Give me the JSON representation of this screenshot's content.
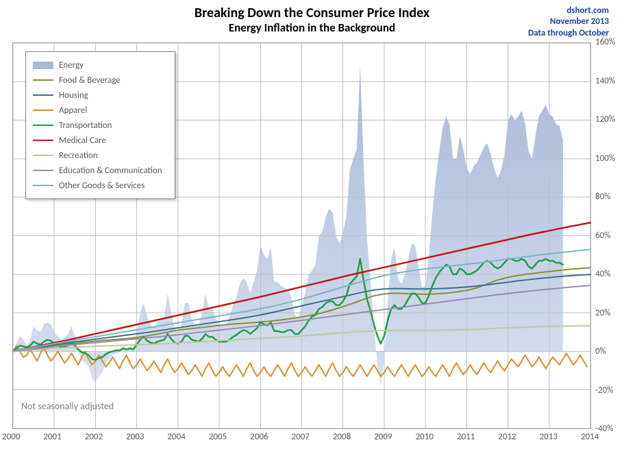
{
  "title": "Breaking Down the Consumer Price Index",
  "subtitle": "Energy Inflation in the Background",
  "attribution": {
    "site": "dshort.com",
    "date": "November 2013",
    "range": "Data through October"
  },
  "footnote": "Not seasonally adjusted",
  "chart": {
    "type": "line-with-area-background",
    "xlim": [
      2000,
      2014
    ],
    "ylim": [
      -40,
      160
    ],
    "x_tick_step": 1,
    "y_tick_step": 20,
    "y_tick_suffix": "%",
    "background_color": "#ffffff",
    "grid_color": "#bfbfbf",
    "axis_label_color": "#595959",
    "axis_fontsize": 13,
    "title_fontsize": 20,
    "subtitle_fontsize": 17,
    "attribution_color": "#1f3f9b",
    "area_series": {
      "name": "Energy",
      "fill_top": "#aab9d9",
      "fill_bottom": "#d7e0ef",
      "stroke": "none",
      "x_step": 0.0833333,
      "y": [
        0,
        4,
        8,
        6,
        3,
        6,
        13,
        11,
        10,
        14,
        15,
        14,
        10,
        8,
        6,
        7,
        9,
        13,
        8,
        0,
        -5,
        -6,
        -8,
        -14,
        -16,
        -13,
        -11,
        -6,
        -4,
        -2,
        -1,
        -1,
        3,
        1,
        3,
        1,
        10,
        20,
        25,
        18,
        14,
        12,
        15,
        16,
        18,
        30,
        20,
        12,
        10,
        14,
        25,
        25,
        16,
        14,
        13,
        20,
        30,
        22,
        22,
        17,
        14,
        14,
        14,
        18,
        24,
        28,
        35,
        38,
        36,
        30,
        36,
        42,
        55,
        50,
        48,
        54,
        36,
        36,
        34,
        33,
        32,
        28,
        19,
        17,
        24,
        30,
        40,
        42,
        45,
        60,
        62,
        70,
        74,
        72,
        60,
        56,
        62,
        70,
        94,
        100,
        105,
        148,
        98,
        58,
        37,
        14,
        -7,
        -18,
        -4,
        26,
        48,
        54,
        38,
        35,
        40,
        48,
        56,
        55,
        44,
        33,
        34,
        50,
        72,
        90,
        104,
        116,
        122,
        118,
        100,
        100,
        112,
        105,
        95,
        92,
        96,
        98,
        102,
        106,
        108,
        102,
        95,
        90,
        94,
        102,
        120,
        123,
        120,
        122,
        125,
        118,
        104,
        100,
        112,
        122,
        125,
        128,
        123,
        122,
        118,
        117,
        110
      ]
    },
    "line_series": [
      {
        "name": "Food & Beverage",
        "color": "#8a8f2e",
        "width": 2,
        "x_step": 0.25,
        "y": [
          0,
          0.8,
          1.5,
          2.2,
          2.9,
          3.6,
          4.2,
          4.8,
          5.3,
          5.8,
          6.2,
          6.6,
          7.2,
          8.0,
          9.0,
          10.0,
          11.0,
          11.6,
          12.2,
          12.8,
          13.4,
          14.0,
          14.4,
          14.8,
          15.2,
          15.7,
          16.3,
          17.0,
          17.8,
          18.8,
          20.0,
          21.5,
          23.2,
          25.0,
          27.0,
          28.8,
          29.8,
          30.2,
          30.0,
          29.7,
          29.6,
          29.8,
          30.2,
          30.8,
          31.6,
          33.0,
          35.0,
          37.0,
          38.4,
          39.4,
          40.2,
          40.8,
          41.4,
          42.0,
          42.6,
          43.0,
          43.4
        ]
      },
      {
        "name": "Housing",
        "color": "#3b6f8f",
        "width": 2,
        "x_step": 0.25,
        "y": [
          0,
          0.9,
          1.8,
          2.6,
          3.4,
          4.2,
          4.9,
          5.6,
          6.3,
          7.0,
          7.7,
          8.4,
          9.1,
          9.8,
          10.6,
          11.4,
          12.2,
          13.0,
          13.8,
          14.6,
          15.4,
          16.2,
          17.0,
          17.9,
          18.9,
          20.0,
          21.2,
          22.4,
          23.6,
          24.8,
          26.0,
          27.2,
          28.4,
          29.6,
          30.8,
          31.8,
          32.4,
          32.6,
          32.5,
          32.4,
          32.4,
          32.5,
          32.7,
          33.0,
          33.4,
          33.9,
          34.5,
          35.2,
          35.9,
          36.6,
          37.2,
          37.8,
          38.3,
          38.8,
          39.2,
          39.6,
          39.9
        ]
      },
      {
        "name": "Apparel",
        "color": "#e08b28",
        "width": 2,
        "x_step": 0.0833333,
        "y": [
          0,
          3,
          0,
          -3,
          -2,
          1,
          -2,
          -5,
          -1,
          2,
          -2,
          -5,
          -3,
          0,
          -3,
          -6,
          -4,
          -1,
          -4,
          -7,
          -3,
          0,
          -4,
          -7,
          -5,
          -2,
          -5,
          -8,
          -6,
          -3,
          -6,
          -9,
          -5,
          -2,
          -6,
          -9,
          -7,
          -4,
          -7,
          -10,
          -8,
          -5,
          -8,
          -11,
          -7,
          -4,
          -8,
          -11,
          -9,
          -6,
          -9,
          -12,
          -10,
          -7,
          -10,
          -13,
          -9,
          -6,
          -10,
          -13,
          -11,
          -8,
          -11,
          -13,
          -10,
          -7,
          -10,
          -13,
          -9,
          -6,
          -10,
          -13,
          -11,
          -8,
          -11,
          -13,
          -10,
          -7,
          -10,
          -13,
          -9,
          -6,
          -10,
          -13,
          -11,
          -8,
          -11,
          -13,
          -10,
          -7,
          -10,
          -13,
          -9,
          -6,
          -10,
          -13,
          -11,
          -8,
          -11,
          -13,
          -10,
          -7,
          -10,
          -13,
          -10,
          -7,
          -10,
          -13,
          -11,
          -8,
          -11,
          -13,
          -10,
          -7,
          -10,
          -13,
          -10,
          -7,
          -10,
          -13,
          -11,
          -8,
          -11,
          -13,
          -10,
          -7,
          -10,
          -13,
          -9,
          -6,
          -9,
          -12,
          -10,
          -7,
          -10,
          -12,
          -9,
          -6,
          -9,
          -11,
          -8,
          -5,
          -8,
          -10,
          -7,
          -4,
          -6,
          -8,
          -5,
          -2,
          -5,
          -8,
          -6,
          -3,
          -6,
          -9,
          -6,
          -3,
          -5,
          -7,
          -4,
          -1,
          -4,
          -7,
          -5,
          -2,
          -5,
          -8
        ]
      },
      {
        "name": "Transportation",
        "color": "#1fa043",
        "width": 2.5,
        "x_step": 0.0833333,
        "y": [
          0,
          1.5,
          3,
          2.5,
          2,
          3,
          5,
          4,
          3.5,
          5,
          6,
          5.5,
          4,
          3,
          2,
          2.5,
          3,
          4.5,
          3,
          1,
          -0.5,
          -1,
          -2,
          -4,
          -4.5,
          -3.5,
          -3,
          -1.5,
          -0.5,
          0,
          0.5,
          0.5,
          1.5,
          1,
          1.5,
          1,
          3.5,
          6,
          7.5,
          5.5,
          4.5,
          4,
          5,
          5.5,
          6,
          9,
          6.5,
          4.5,
          4,
          5,
          8,
          8,
          6,
          5.5,
          5,
          6.5,
          9,
          7.5,
          7.5,
          6,
          5,
          5,
          5,
          6,
          7.5,
          8.5,
          10,
          11,
          10.5,
          9,
          10.5,
          12,
          15,
          14,
          13.5,
          15,
          10.5,
          10.5,
          10,
          10,
          11,
          11,
          9,
          9,
          11,
          13,
          16,
          18,
          19,
          22,
          23,
          25,
          26,
          26,
          24,
          24,
          26,
          29,
          35,
          37,
          39,
          48,
          37,
          27,
          21,
          14,
          8,
          4,
          8,
          16,
          22,
          24,
          22,
          22,
          24,
          27,
          30,
          30,
          28,
          25,
          25,
          29,
          34,
          38,
          41,
          43,
          45,
          44,
          40,
          40,
          43,
          42,
          40,
          40,
          41,
          42,
          44,
          46,
          47,
          46,
          44,
          43,
          44,
          46,
          48,
          48,
          47,
          47,
          48,
          47,
          44,
          43,
          45,
          47,
          47,
          48,
          47,
          47,
          46,
          46,
          45
        ]
      },
      {
        "name": "Medical Care",
        "color": "#c11818",
        "width": 2.5,
        "x_step": 0.25,
        "y": [
          0,
          1.1,
          2.2,
          3.3,
          4.4,
          5.5,
          6.7,
          7.9,
          9.1,
          10.3,
          11.5,
          12.7,
          13.9,
          15.1,
          16.3,
          17.5,
          18.7,
          19.9,
          21.1,
          22.3,
          23.5,
          24.7,
          25.9,
          27.1,
          28.3,
          29.6,
          30.9,
          32.2,
          33.5,
          34.8,
          36.1,
          37.4,
          38.7,
          40.0,
          41.2,
          42.4,
          43.6,
          44.8,
          46.0,
          47.2,
          48.4,
          49.6,
          50.8,
          52.0,
          53.2,
          54.4,
          55.6,
          56.8,
          58.0,
          59.2,
          60.4,
          61.5,
          62.6,
          63.7,
          64.8,
          65.8,
          66.8
        ]
      },
      {
        "name": "Recreation",
        "color": "#c2c99a",
        "width": 2,
        "x_step": 0.25,
        "y": [
          0,
          0.4,
          0.8,
          1.2,
          1.5,
          1.8,
          2.1,
          2.4,
          2.6,
          2.8,
          3.0,
          3.2,
          3.4,
          3.6,
          3.8,
          4.0,
          4.3,
          4.6,
          4.9,
          5.2,
          5.5,
          5.8,
          6.1,
          6.4,
          6.7,
          7.0,
          7.3,
          7.6,
          8.0,
          8.4,
          8.8,
          9.2,
          9.6,
          10.0,
          10.3,
          10.6,
          10.8,
          10.9,
          10.9,
          10.9,
          10.9,
          10.9,
          11.0,
          11.1,
          11.2,
          11.4,
          11.7,
          12.0,
          12.2,
          12.4,
          12.6,
          12.8,
          12.9,
          13.0,
          13.1,
          13.2,
          13.2
        ]
      },
      {
        "name": "Education & Communication",
        "color": "#9a8bb0",
        "width": 2,
        "x_step": 0.25,
        "y": [
          0,
          0.6,
          1.2,
          1.8,
          2.4,
          3.0,
          3.5,
          4.0,
          4.5,
          5.0,
          5.5,
          6.0,
          6.5,
          7.0,
          7.5,
          8.0,
          8.6,
          9.2,
          9.8,
          10.4,
          11.0,
          11.6,
          12.2,
          12.8,
          13.4,
          14.0,
          14.7,
          15.4,
          16.1,
          16.8,
          17.5,
          18.2,
          18.9,
          19.6,
          20.3,
          21.0,
          21.7,
          22.4,
          23.1,
          23.8,
          24.5,
          25.2,
          25.9,
          26.6,
          27.3,
          28.0,
          28.7,
          29.4,
          30.0,
          30.6,
          31.2,
          31.8,
          32.3,
          32.8,
          33.3,
          33.8,
          34.2
        ]
      },
      {
        "name": "Other Goods & Services",
        "color": "#7bb4c9",
        "width": 2,
        "x_step": 0.25,
        "y": [
          0,
          1.0,
          2.0,
          3.0,
          4.0,
          4.9,
          5.8,
          6.7,
          7.6,
          8.5,
          9.4,
          10.3,
          11.2,
          12.1,
          13.0,
          13.9,
          14.8,
          15.7,
          16.6,
          17.5,
          18.4,
          19.3,
          20.2,
          21.1,
          22.1,
          23.2,
          24.4,
          25.7,
          27.1,
          28.6,
          30.2,
          31.8,
          33.4,
          35.0,
          36.5,
          38.0,
          39.3,
          40.4,
          41.3,
          42.1,
          42.8,
          43.4,
          44.0,
          44.6,
          45.2,
          45.8,
          46.5,
          47.2,
          47.9,
          48.6,
          49.3,
          50.0,
          50.6,
          51.2,
          51.8,
          52.4,
          52.9
        ]
      }
    ],
    "legend": {
      "position": "top-left-inside",
      "border_color": "#808080",
      "background": "#ffffff",
      "items": [
        {
          "label": "Energy",
          "type": "area",
          "fill": "#aab9d9"
        },
        {
          "label": "Food & Beverage",
          "type": "line",
          "color": "#8a8f2e"
        },
        {
          "label": "Housing",
          "type": "line",
          "color": "#3b6f8f"
        },
        {
          "label": "Apparel",
          "type": "line",
          "color": "#e08b28"
        },
        {
          "label": "Transportation",
          "type": "line",
          "color": "#1fa043"
        },
        {
          "label": "Medical Care",
          "type": "line",
          "color": "#c11818"
        },
        {
          "label": "Recreation",
          "type": "line",
          "color": "#c2c99a"
        },
        {
          "label": "Education & Communication",
          "type": "line",
          "color": "#9a8bb0"
        },
        {
          "label": "Other Goods & Services",
          "type": "line",
          "color": "#7bb4c9"
        }
      ]
    }
  }
}
